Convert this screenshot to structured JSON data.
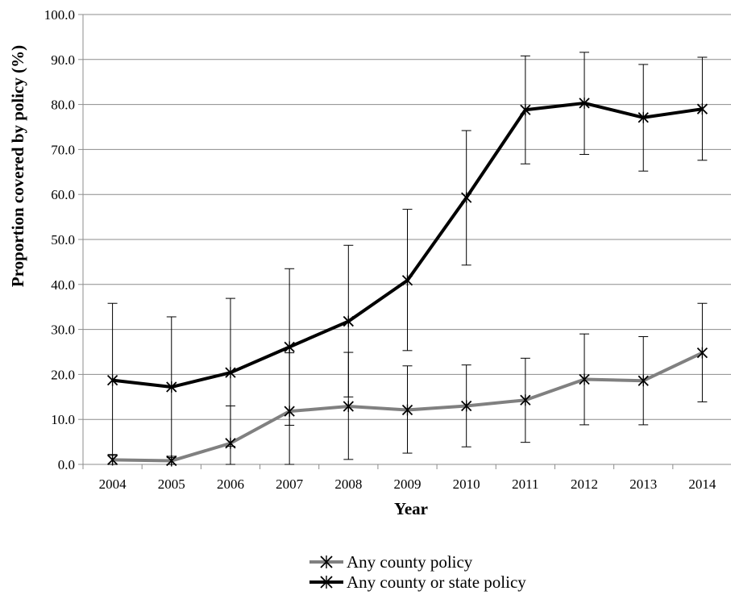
{
  "chart_data": {
    "type": "line",
    "title": "",
    "xlabel": "Year",
    "ylabel": "Proportion covered by policy (%)",
    "ylim": [
      0,
      100
    ],
    "y_ticks": [
      "0.0",
      "10.0",
      "20.0",
      "30.0",
      "40.0",
      "50.0",
      "60.0",
      "70.0",
      "80.0",
      "90.0",
      "100.0"
    ],
    "categories": [
      "2004",
      "2005",
      "2006",
      "2007",
      "2008",
      "2009",
      "2010",
      "2011",
      "2012",
      "2013",
      "2014"
    ],
    "grid": "horizontal",
    "legend_position": "bottom",
    "series": [
      {
        "name": "Any county policy",
        "color": "#808080",
        "marker": "asterisk",
        "values": [
          1.0,
          0.8,
          4.7,
          11.8,
          12.9,
          12.1,
          13.0,
          14.3,
          18.9,
          18.6,
          24.8
        ],
        "err_low": [
          0.0,
          0.0,
          0.0,
          0.0,
          1.1,
          2.5,
          3.9,
          4.9,
          8.8,
          8.8,
          13.9
        ],
        "err_high": [
          2.2,
          1.8,
          13.0,
          24.8,
          24.9,
          21.9,
          22.1,
          23.6,
          29.0,
          28.4,
          35.8
        ]
      },
      {
        "name": "Any county or state policy",
        "color": "#000000",
        "marker": "asterisk",
        "values": [
          18.7,
          17.2,
          20.4,
          26.1,
          31.8,
          40.9,
          59.3,
          78.8,
          80.3,
          77.1,
          79.0
        ],
        "err_low": [
          2.0,
          1.5,
          4.0,
          8.7,
          15.0,
          25.3,
          44.3,
          66.8,
          68.9,
          65.2,
          67.6
        ],
        "err_high": [
          35.8,
          32.8,
          36.9,
          43.5,
          48.7,
          56.7,
          74.2,
          90.8,
          91.6,
          88.9,
          90.5
        ]
      }
    ]
  }
}
